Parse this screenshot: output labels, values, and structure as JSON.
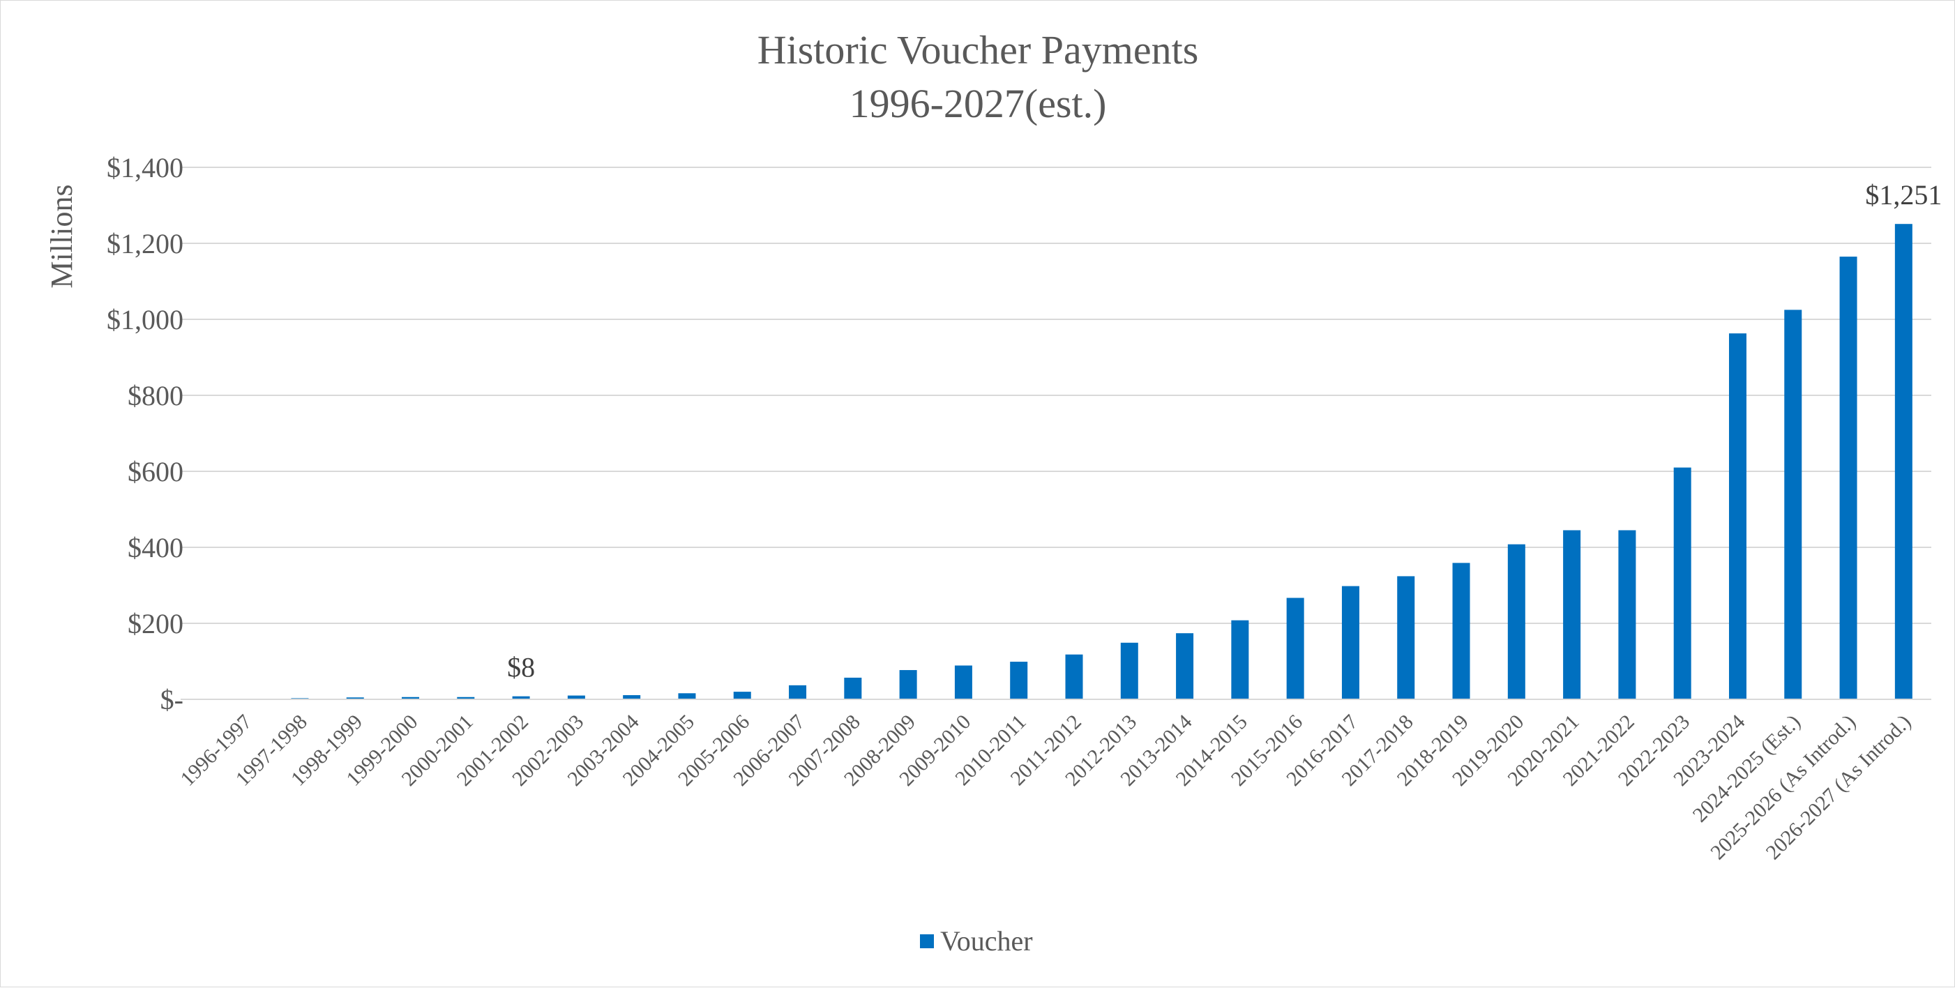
{
  "chart_data": {
    "type": "bar",
    "title": "Historic Voucher Payments",
    "subtitle": "1996-2027(est.)",
    "xlabel": "",
    "ylabel": "Millions",
    "ylim": [
      0,
      1400
    ],
    "yticks": [
      0,
      200,
      400,
      600,
      800,
      1000,
      1200,
      1400
    ],
    "ytick_labels": [
      "$-",
      "$200",
      "$400",
      "$600",
      "$800",
      "$1,000",
      "$1,200",
      "$1,400"
    ],
    "grid": true,
    "legend_position": "bottom",
    "categories": [
      "1996-1997",
      "1997-1998",
      "1998-1999",
      "1999-2000",
      "2000-2001",
      "2001-2002",
      "2002-2003",
      "2003-2004",
      "2004-2005",
      "2005-2006",
      "2006-2007",
      "2007-2008",
      "2008-2009",
      "2009-2010",
      "2010-2011",
      "2011-2012",
      "2012-2013",
      "2013-2014",
      "2014-2015",
      "2015-2016",
      "2016-2017",
      "2017-2018",
      "2018-2019",
      "2019-2020",
      "2020-2021",
      "2021-2022",
      "2022-2023",
      "2023-2024",
      "2024-2025 (Est.)",
      "2025-2026 (As Introd.)",
      "2026-2027 (As Introd.)"
    ],
    "series": [
      {
        "name": "Voucher",
        "color": "#0070c0",
        "values": [
          1,
          3,
          5,
          6,
          6,
          8,
          10,
          11,
          16,
          20,
          37,
          57,
          77,
          89,
          99,
          118,
          149,
          174,
          208,
          267,
          298,
          324,
          359,
          408,
          445,
          445,
          610,
          963,
          1025,
          1165,
          1251
        ]
      }
    ],
    "data_labels": [
      {
        "category": "2001-2002",
        "text": "$8"
      },
      {
        "category": "2026-2027 (As Introd.)",
        "text": "$1,251"
      }
    ]
  }
}
